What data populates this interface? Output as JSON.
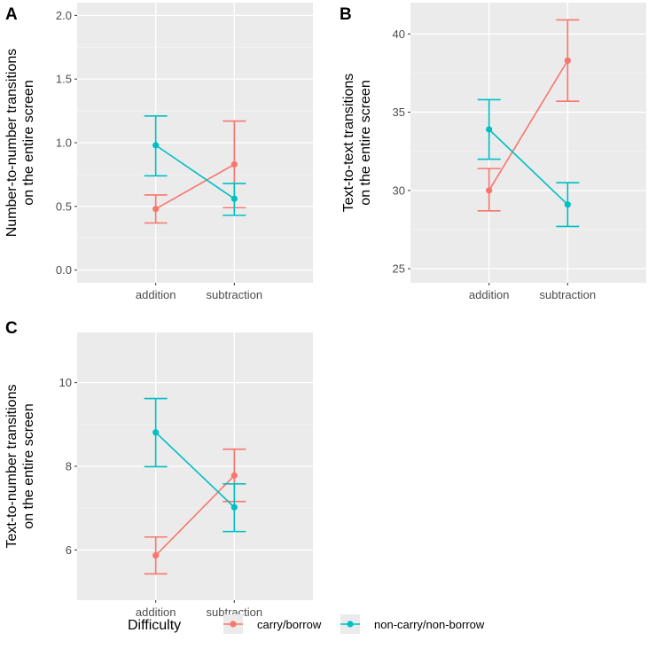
{
  "colors": {
    "carry_borrow": "#F8766D",
    "non_carry_non_borrow": "#00BFC4",
    "panel_bg": "#EBEBEB",
    "grid_major": "#FFFFFF",
    "grid_minor": "#F5F5F5"
  },
  "legend": {
    "title": "Difficulty",
    "items": [
      {
        "key": "carry_borrow",
        "label": "carry/borrow"
      },
      {
        "key": "non_carry_non_borrow",
        "label": "non-carry/non-borrow"
      }
    ]
  },
  "chart_data": [
    {
      "tag": "A",
      "type": "line",
      "categories": [
        "addition",
        "subtraction"
      ],
      "ylabel_lines": [
        "Number-to-number transitions",
        "on the entire screen"
      ],
      "ylim": [
        -0.1,
        2.1
      ],
      "yticks": [
        0.0,
        0.5,
        1.0,
        1.5,
        2.0
      ],
      "ytick_labels": [
        "0.0",
        "0.5",
        "1.0",
        "1.5",
        "2.0"
      ],
      "series": [
        {
          "key": "carry_borrow",
          "name": "carry/borrow",
          "values": [
            0.48,
            0.83
          ],
          "lower": [
            0.37,
            0.49
          ],
          "upper": [
            0.59,
            1.17
          ]
        },
        {
          "key": "non_carry_non_borrow",
          "name": "non-carry/non-borrow",
          "values": [
            0.98,
            0.56
          ],
          "lower": [
            0.74,
            0.43
          ],
          "upper": [
            1.21,
            0.68
          ]
        }
      ]
    },
    {
      "tag": "B",
      "type": "line",
      "categories": [
        "addition",
        "subtraction"
      ],
      "ylabel_lines": [
        "Text-to-text transitions",
        "on the entire screen"
      ],
      "ylim": [
        24.1,
        42.0
      ],
      "yticks": [
        25,
        30,
        35,
        40
      ],
      "ytick_labels": [
        "25",
        "30",
        "35",
        "40"
      ],
      "series": [
        {
          "key": "carry_borrow",
          "name": "carry/borrow",
          "values": [
            30.0,
            38.3
          ],
          "lower": [
            28.7,
            35.7
          ],
          "upper": [
            31.4,
            40.9
          ]
        },
        {
          "key": "non_carry_non_borrow",
          "name": "non-carry/non-borrow",
          "values": [
            33.9,
            29.1
          ],
          "lower": [
            32.0,
            27.7
          ],
          "upper": [
            35.8,
            30.5
          ]
        }
      ]
    },
    {
      "tag": "C",
      "type": "line",
      "categories": [
        "addition",
        "subtraction"
      ],
      "ylabel_lines": [
        "Text-to-number transitions",
        "on the entire screen"
      ],
      "ylim": [
        4.8,
        11.2
      ],
      "yticks": [
        6,
        8,
        10
      ],
      "ytick_labels": [
        "6",
        "8",
        "10"
      ],
      "series": [
        {
          "key": "carry_borrow",
          "name": "carry/borrow",
          "values": [
            5.87,
            7.78
          ],
          "lower": [
            5.43,
            7.16
          ],
          "upper": [
            6.31,
            8.41
          ]
        },
        {
          "key": "non_carry_non_borrow",
          "name": "non-carry/non-borrow",
          "values": [
            8.81,
            7.02
          ],
          "lower": [
            7.99,
            6.44
          ],
          "upper": [
            9.62,
            7.58
          ]
        }
      ]
    }
  ]
}
